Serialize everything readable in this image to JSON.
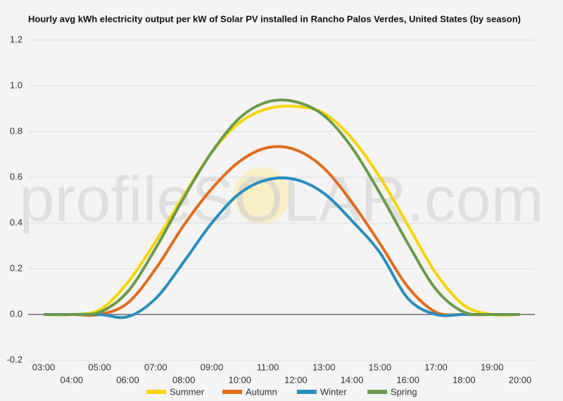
{
  "chart_data": {
    "type": "line",
    "title": "Hourly avg kWh electricity output per kW of Solar PV installed in Rancho Palos Verdes, United States (by season)",
    "watermark": "profileSOLAR.com",
    "categories": [
      "03:00",
      "04:00",
      "05:00",
      "06:00",
      "07:00",
      "08:00",
      "09:00",
      "10:00",
      "11:00",
      "12:00",
      "13:00",
      "14:00",
      "15:00",
      "16:00",
      "17:00",
      "18:00",
      "19:00",
      "20:00"
    ],
    "series": [
      {
        "name": "Summer",
        "color": "#f7d500",
        "values": [
          0,
          0,
          0.02,
          0.14,
          0.32,
          0.52,
          0.71,
          0.84,
          0.9,
          0.91,
          0.88,
          0.77,
          0.6,
          0.39,
          0.18,
          0.04,
          0,
          0
        ]
      },
      {
        "name": "Autumn",
        "color": "#e06c1c",
        "values": [
          0,
          0,
          0,
          0.05,
          0.2,
          0.39,
          0.55,
          0.67,
          0.73,
          0.72,
          0.64,
          0.49,
          0.31,
          0.12,
          0.01,
          0,
          0,
          0
        ]
      },
      {
        "name": "Winter",
        "color": "#2a8dbd",
        "values": [
          0,
          0,
          0,
          -0.01,
          0.07,
          0.23,
          0.4,
          0.53,
          0.59,
          0.59,
          0.53,
          0.41,
          0.27,
          0.07,
          0,
          0,
          0,
          0
        ]
      },
      {
        "name": "Spring",
        "color": "#6a9a4c",
        "values": [
          0,
          0,
          0.01,
          0.1,
          0.29,
          0.51,
          0.71,
          0.86,
          0.93,
          0.93,
          0.87,
          0.73,
          0.53,
          0.31,
          0.11,
          0.01,
          0,
          0
        ]
      }
    ],
    "ylim": [
      -0.2,
      1.2
    ],
    "yticks": [
      -0.2,
      {
        "value": 0,
        "label": "0.0"
      },
      0.2,
      0.4,
      0.6,
      0.8,
      {
        "value": 1,
        "label": "1.0"
      },
      1.2
    ],
    "grid": true
  }
}
